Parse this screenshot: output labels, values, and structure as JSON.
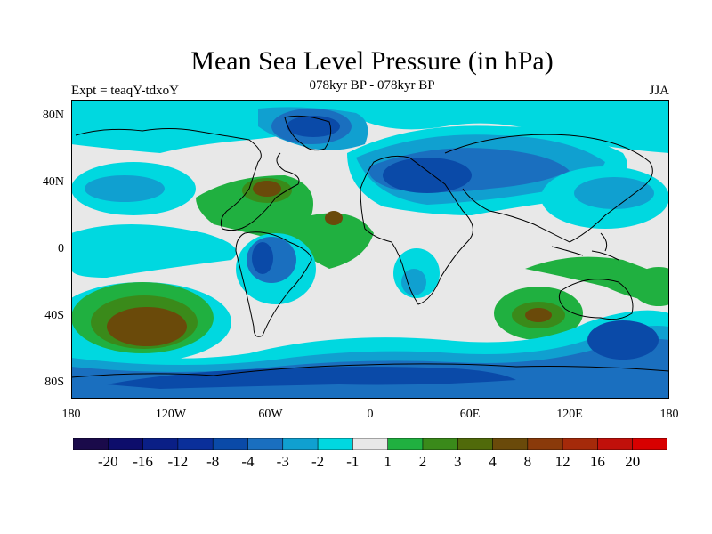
{
  "header": {
    "title": "Mean Sea Level Pressure (in hPa)",
    "subtitle": "078kyr BP - 078kyr BP",
    "left_label": "Expt = teaqY-tdxoY",
    "right_label": "JJA"
  },
  "axes": {
    "y_ticks": [
      "80N",
      "40N",
      "0",
      "40S",
      "80S"
    ],
    "x_ticks": [
      "180",
      "120W",
      "60W",
      "0",
      "60E",
      "120E",
      "180"
    ]
  },
  "colorbar": {
    "colors": [
      "#1a0a4a",
      "#0d0d6b",
      "#0a1f86",
      "#0a2f9a",
      "#0a4aa8",
      "#1a6fbf",
      "#10a0d0",
      "#00d8e0",
      "#e8e8e8",
      "#20b040",
      "#3a8a1a",
      "#506a0a",
      "#6a4a0a",
      "#8a3a0a",
      "#a52a0a",
      "#c0100a",
      "#d80000"
    ],
    "labels": [
      "-20",
      "-16",
      "-12",
      "-8",
      "-4",
      "-3",
      "-2",
      "-1",
      "1",
      "2",
      "3",
      "4",
      "8",
      "12",
      "16",
      "20"
    ]
  },
  "map_colors": {
    "background": "#e8e8e8",
    "cyan": "#00d8e0",
    "light_blue": "#10a0d0",
    "mid_blue": "#1a6fbf",
    "deep_blue": "#0a4aa8",
    "green": "#20b040",
    "olive": "#3a8a1a",
    "brown": "#6a4a0a",
    "coast": "#000000"
  }
}
